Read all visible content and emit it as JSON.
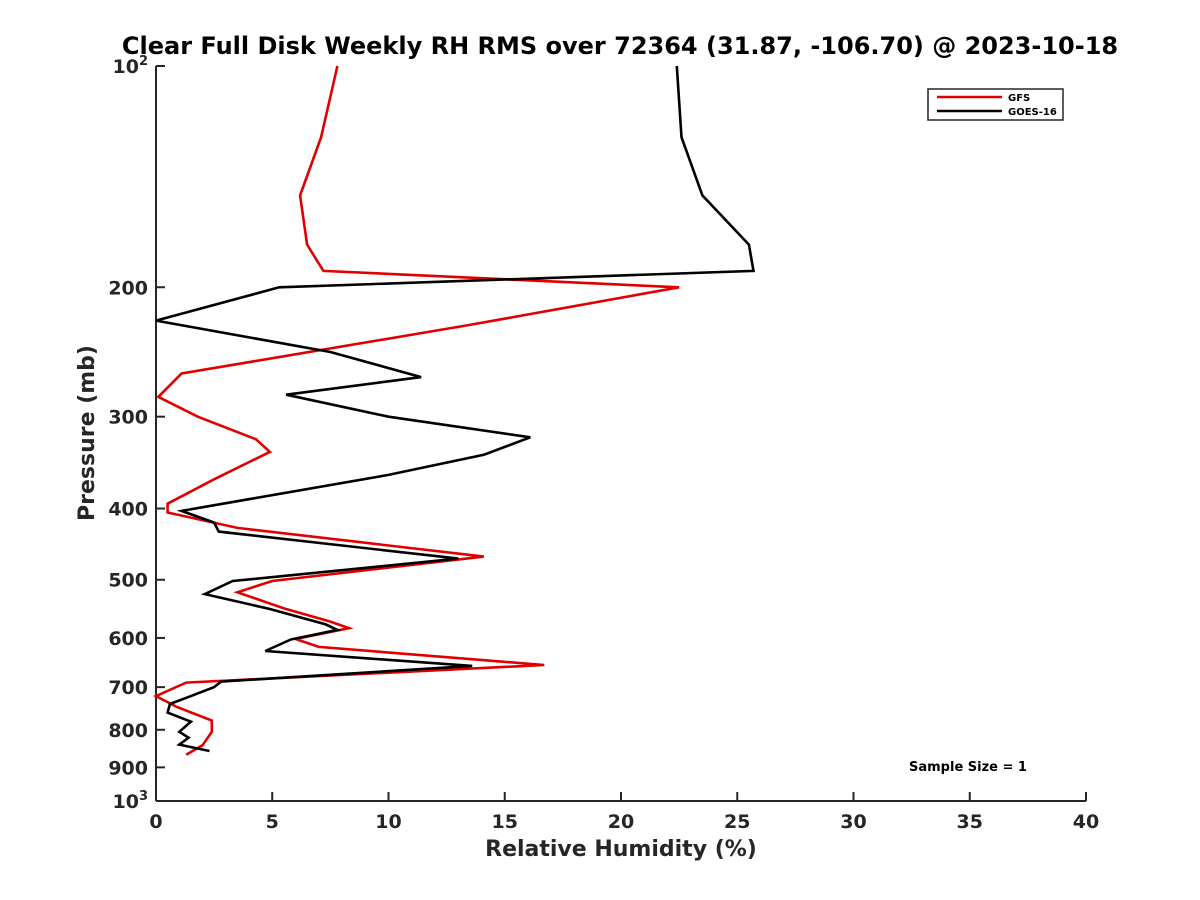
{
  "chart_data": {
    "type": "line",
    "title": "Clear Full Disk Weekly RH RMS over 72364 (31.87, -106.70) @ 2023-10-18",
    "xlabel": "Relative Humidity (%)",
    "ylabel": "Pressure (mb)",
    "xlim": [
      0,
      40
    ],
    "ylim": [
      100,
      1000
    ],
    "yscale": "log",
    "y_reversed": true,
    "grid": false,
    "legend_position": "top-right",
    "x_ticks": [
      0,
      5,
      10,
      15,
      20,
      25,
      30,
      35,
      40
    ],
    "x_tick_labels": [
      "0",
      "5",
      "10",
      "15",
      "20",
      "25",
      "30",
      "35",
      "40"
    ],
    "y_ticks": [
      100,
      200,
      300,
      400,
      500,
      600,
      700,
      800,
      900,
      1000
    ],
    "y_tick_labels": [
      {
        "base": "10",
        "exp": "2"
      },
      {
        "base": "200",
        "exp": ""
      },
      {
        "base": "300",
        "exp": ""
      },
      {
        "base": "400",
        "exp": ""
      },
      {
        "base": "500",
        "exp": ""
      },
      {
        "base": "600",
        "exp": ""
      },
      {
        "base": "700",
        "exp": ""
      },
      {
        "base": "800",
        "exp": ""
      },
      {
        "base": "900",
        "exp": ""
      },
      {
        "base": "10",
        "exp": "3"
      }
    ],
    "annotation": "Sample Size = 1",
    "series": [
      {
        "name": "GFS",
        "color": "#e00000",
        "points": [
          {
            "x": 7.8,
            "y": 100
          },
          {
            "x": 7.1,
            "y": 125
          },
          {
            "x": 6.2,
            "y": 150
          },
          {
            "x": 6.5,
            "y": 175
          },
          {
            "x": 7.2,
            "y": 190
          },
          {
            "x": 22.5,
            "y": 200
          },
          {
            "x": 13.5,
            "y": 225
          },
          {
            "x": 1.1,
            "y": 262
          },
          {
            "x": 0.1,
            "y": 282
          },
          {
            "x": 1.8,
            "y": 300
          },
          {
            "x": 4.3,
            "y": 322
          },
          {
            "x": 4.9,
            "y": 335
          },
          {
            "x": 2.5,
            "y": 365
          },
          {
            "x": 0.5,
            "y": 394
          },
          {
            "x": 0.5,
            "y": 405
          },
          {
            "x": 3.5,
            "y": 425
          },
          {
            "x": 14.1,
            "y": 465
          },
          {
            "x": 5.0,
            "y": 502
          },
          {
            "x": 3.5,
            "y": 520
          },
          {
            "x": 5.5,
            "y": 547
          },
          {
            "x": 7.5,
            "y": 570
          },
          {
            "x": 8.3,
            "y": 582
          },
          {
            "x": 6.0,
            "y": 602
          },
          {
            "x": 7.0,
            "y": 617
          },
          {
            "x": 16.7,
            "y": 653
          },
          {
            "x": 1.3,
            "y": 690
          },
          {
            "x": 0.0,
            "y": 720
          },
          {
            "x": 0.9,
            "y": 745
          },
          {
            "x": 2.4,
            "y": 777
          },
          {
            "x": 2.4,
            "y": 805
          },
          {
            "x": 2.0,
            "y": 840
          },
          {
            "x": 1.3,
            "y": 865
          }
        ]
      },
      {
        "name": "GOES-16",
        "color": "#000000",
        "points": [
          {
            "x": 22.4,
            "y": 100
          },
          {
            "x": 22.6,
            "y": 125
          },
          {
            "x": 23.5,
            "y": 150
          },
          {
            "x": 25.5,
            "y": 175
          },
          {
            "x": 25.7,
            "y": 190
          },
          {
            "x": 5.3,
            "y": 200
          },
          {
            "x": 0.0,
            "y": 222
          },
          {
            "x": 7.5,
            "y": 245
          },
          {
            "x": 11.4,
            "y": 265
          },
          {
            "x": 5.6,
            "y": 280
          },
          {
            "x": 10.0,
            "y": 300
          },
          {
            "x": 16.1,
            "y": 320
          },
          {
            "x": 14.1,
            "y": 338
          },
          {
            "x": 10.0,
            "y": 360
          },
          {
            "x": 1.1,
            "y": 403
          },
          {
            "x": 2.5,
            "y": 418
          },
          {
            "x": 2.7,
            "y": 430
          },
          {
            "x": 13.0,
            "y": 468
          },
          {
            "x": 3.3,
            "y": 502
          },
          {
            "x": 2.1,
            "y": 523
          },
          {
            "x": 4.9,
            "y": 548
          },
          {
            "x": 7.3,
            "y": 575
          },
          {
            "x": 7.8,
            "y": 585
          },
          {
            "x": 5.8,
            "y": 603
          },
          {
            "x": 4.7,
            "y": 625
          },
          {
            "x": 13.6,
            "y": 655
          },
          {
            "x": 2.8,
            "y": 688
          },
          {
            "x": 2.5,
            "y": 700
          },
          {
            "x": 1.5,
            "y": 720
          },
          {
            "x": 0.6,
            "y": 738
          },
          {
            "x": 0.5,
            "y": 758
          },
          {
            "x": 1.5,
            "y": 780
          },
          {
            "x": 1.0,
            "y": 805
          },
          {
            "x": 1.4,
            "y": 820
          },
          {
            "x": 1.0,
            "y": 838
          },
          {
            "x": 2.3,
            "y": 855
          }
        ]
      }
    ]
  }
}
